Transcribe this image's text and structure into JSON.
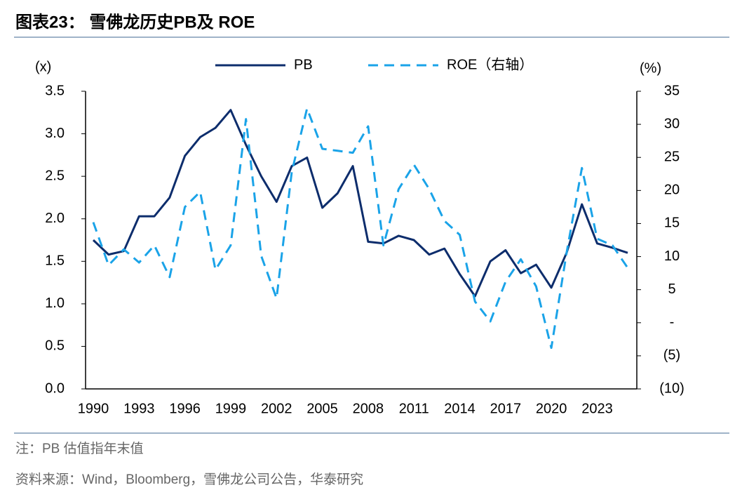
{
  "chart_data": {
    "type": "line",
    "title": "图表23：  雪佛龙历史PB及 ROE",
    "ylabel": "(x)",
    "y2label": "(%)",
    "note": "注：PB 估值指年末值",
    "source": "资料来源：Wind，Bloomberg，雪佛龙公司公告，华泰研究",
    "categories": [
      "1990",
      null,
      null,
      "1993",
      null,
      null,
      "1996",
      null,
      null,
      "1999",
      null,
      null,
      "2002",
      null,
      null,
      "2005",
      null,
      null,
      "2008",
      null,
      null,
      "2011",
      null,
      null,
      "2014",
      null,
      null,
      "2017",
      null,
      null,
      "2020",
      null,
      null,
      "2023",
      null,
      null
    ],
    "series": [
      {
        "name": "PB",
        "color": "#0d2d6c",
        "dash": false,
        "values": [
          1.75,
          1.58,
          1.62,
          2.03,
          2.03,
          2.25,
          2.74,
          2.96,
          3.07,
          3.28,
          2.87,
          2.5,
          2.2,
          2.62,
          2.72,
          2.13,
          2.3,
          2.62,
          1.73,
          1.71,
          1.8,
          1.75,
          1.58,
          1.65,
          1.35,
          1.09,
          1.5,
          1.63,
          1.36,
          1.46,
          1.19,
          1.6,
          2.17,
          1.71,
          1.66,
          1.6
        ]
      },
      {
        "name": "ROE（右轴）",
        "color": "#1aa3e8",
        "dash": true,
        "axis": "y2",
        "values": [
          15.2,
          8.7,
          11.1,
          9.1,
          11.7,
          6.9,
          17.5,
          19.8,
          8.0,
          11.7,
          30.8,
          10.1,
          3.7,
          22.8,
          32.4,
          26.3,
          26.0,
          25.7,
          29.7,
          11.7,
          20.2,
          23.9,
          20.2,
          15.4,
          13.3,
          3.2,
          0.2,
          6.2,
          9.6,
          5.5,
          -3.8,
          10.6,
          23.4,
          12.7,
          11.7,
          8.3
        ]
      }
    ],
    "ylim": [
      0,
      3.5
    ],
    "yticks": [
      {
        "value": 0,
        "label": "0.0"
      },
      0.5,
      {
        "value": 1,
        "label": "1.0"
      },
      1.5,
      {
        "value": 2,
        "label": "2.0"
      },
      2.5,
      {
        "value": 3,
        "label": "3.0"
      },
      3.5
    ],
    "y2lim": [
      -10,
      35
    ],
    "y2ticks": [
      {
        "value": -10,
        "label": "(10)"
      },
      {
        "value": -5,
        "label": "(5)"
      },
      {
        "value": 0,
        "label": "-"
      },
      5,
      10,
      15,
      20,
      25,
      30,
      35
    ],
    "legend": "top"
  }
}
